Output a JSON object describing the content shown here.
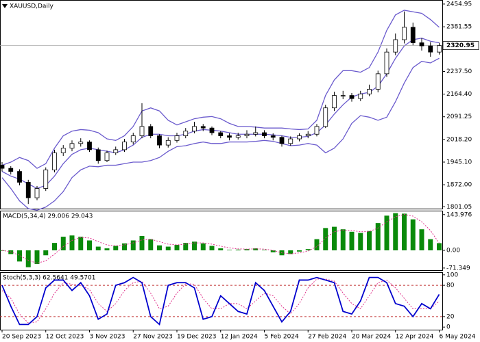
{
  "chart_data": [
    {
      "type": "candlestick",
      "title": "XAUUSD,Daily",
      "open": [
        1935,
        1925,
        1915,
        1880,
        1830,
        1860,
        1920,
        1975,
        1990,
        2005,
        2010,
        1985,
        1950,
        1975,
        1985,
        2010,
        2030,
        2060,
        2030,
        2000,
        2015,
        2030,
        2045,
        2060,
        2055,
        2040,
        2030,
        2025,
        2030,
        2035,
        2040,
        2030,
        2025,
        2005,
        2020,
        2030,
        2035,
        2060,
        2120,
        2160,
        2160,
        2150,
        2165,
        2180,
        2230,
        2300,
        2340,
        2380,
        2330,
        2320,
        2300
      ],
      "high": [
        1945,
        1932,
        1922,
        1888,
        1868,
        1928,
        1985,
        2000,
        2015,
        2022,
        2015,
        1992,
        1982,
        1995,
        2020,
        2040,
        2135,
        2068,
        2035,
        2025,
        2040,
        2055,
        2075,
        2068,
        2060,
        2045,
        2038,
        2040,
        2048,
        2060,
        2048,
        2038,
        2030,
        2028,
        2038,
        2045,
        2068,
        2130,
        2172,
        2175,
        2168,
        2175,
        2195,
        2240,
        2312,
        2360,
        2431,
        2395,
        2345,
        2332,
        2330
      ],
      "low": [
        1915,
        1905,
        1870,
        1810,
        1822,
        1852,
        1912,
        1965,
        1980,
        1995,
        1978,
        1940,
        1945,
        1968,
        1978,
        2002,
        2022,
        2022,
        1990,
        1992,
        2008,
        2022,
        2038,
        2045,
        2032,
        2022,
        2015,
        2018,
        2022,
        2028,
        2022,
        2015,
        1995,
        1998,
        2012,
        2022,
        2028,
        2055,
        2110,
        2148,
        2140,
        2142,
        2158,
        2170,
        2220,
        2290,
        2328,
        2322,
        2305,
        2285,
        2292
      ],
      "close": [
        1925,
        1915,
        1880,
        1830,
        1860,
        1920,
        1975,
        1990,
        2005,
        2010,
        1985,
        1950,
        1975,
        1985,
        2010,
        2030,
        2060,
        2030,
        2000,
        2015,
        2030,
        2045,
        2060,
        2055,
        2040,
        2030,
        2025,
        2030,
        2035,
        2040,
        2030,
        2025,
        2005,
        2020,
        2030,
        2035,
        2060,
        2120,
        2160,
        2160,
        2150,
        2165,
        2180,
        2230,
        2300,
        2340,
        2380,
        2330,
        2320,
        2300,
        2320.95
      ],
      "up_color": "#ffffff",
      "down_color": "#000000",
      "edge_color": "#000000",
      "bands": {
        "color": "#6a5acd",
        "upper": [
          1935,
          1945,
          1960,
          1950,
          1925,
          1940,
          1990,
          2030,
          2045,
          2050,
          2048,
          2040,
          2020,
          2015,
          2030,
          2060,
          2110,
          2120,
          2110,
          2080,
          2065,
          2075,
          2085,
          2090,
          2092,
          2085,
          2070,
          2060,
          2060,
          2058,
          2055,
          2055,
          2055,
          2052,
          2050,
          2052,
          2080,
          2160,
          2210,
          2240,
          2240,
          2235,
          2250,
          2300,
          2370,
          2420,
          2435,
          2430,
          2425,
          2405,
          2380
        ],
        "middle": [
          1915,
          1900,
          1890,
          1875,
          1860,
          1870,
          1900,
          1940,
          1970,
          1985,
          1990,
          1985,
          1980,
          1975,
          1985,
          2000,
          2025,
          2035,
          2035,
          2030,
          2030,
          2035,
          2045,
          2050,
          2048,
          2045,
          2040,
          2035,
          2035,
          2035,
          2035,
          2033,
          2030,
          2025,
          2025,
          2028,
          2040,
          2065,
          2100,
          2130,
          2155,
          2165,
          2170,
          2190,
          2230,
          2280,
          2320,
          2340,
          2345,
          2335,
          2330
        ],
        "lower": [
          1895,
          1860,
          1820,
          1795,
          1790,
          1800,
          1820,
          1850,
          1895,
          1920,
          1932,
          1930,
          1935,
          1935,
          1940,
          1945,
          1945,
          1950,
          1960,
          1980,
          1995,
          1998,
          2005,
          2010,
          2005,
          2005,
          2010,
          2010,
          2010,
          2012,
          2015,
          2012,
          2005,
          1998,
          2000,
          2005,
          2000,
          1975,
          1990,
          2020,
          2070,
          2095,
          2090,
          2080,
          2090,
          2140,
          2200,
          2250,
          2270,
          2265,
          2280
        ]
      },
      "last_price": 2320.95,
      "ylim": [
        1795,
        2468
      ],
      "yticks": [
        2454.95,
        2381.55,
        {
          "value": 2237.5,
          "label": "2237.50"
        },
        {
          "value": 2164.4,
          "label": "2164.40"
        },
        2091.25,
        {
          "value": 2018.2,
          "label": "2018.20"
        },
        {
          "value": 1945.1,
          "label": "1945.10"
        },
        {
          "value": 1872,
          "label": "1872.00"
        },
        1801.05
      ]
    },
    {
      "type": "macd",
      "title": "MACD(5,34,4) 29.006 29.043",
      "values": [
        -2,
        -15,
        -45,
        -68,
        -55,
        -20,
        30,
        55,
        60,
        55,
        40,
        15,
        8,
        18,
        28,
        40,
        58,
        45,
        20,
        15,
        22,
        30,
        35,
        28,
        18,
        8,
        2,
        3,
        5,
        8,
        2,
        -8,
        -20,
        -15,
        -5,
        5,
        45,
        90,
        95,
        85,
        75,
        70,
        78,
        110,
        140,
        150,
        148,
        125,
        85,
        45,
        29.006
      ],
      "signal": [
        0,
        -6,
        -20,
        -40,
        -52,
        -42,
        -15,
        15,
        40,
        52,
        50,
        35,
        22,
        18,
        22,
        30,
        42,
        45,
        35,
        25,
        22,
        25,
        30,
        30,
        25,
        17,
        10,
        6,
        5,
        6,
        5,
        0,
        -10,
        -14,
        -10,
        -3,
        15,
        50,
        75,
        82,
        80,
        75,
        76,
        90,
        115,
        135,
        145,
        138,
        115,
        80,
        29.043
      ],
      "color": "#0a8a0a",
      "signal_color": "#e0308a",
      "ylim": [
        -80,
        160
      ],
      "yticks": [
        143.976,
        {
          "value": 0,
          "label": "0.00"
        },
        -71.349
      ]
    },
    {
      "type": "stochastic",
      "title": "Stoch(5,3,3) 62.5641 49.5701",
      "main": [
        80,
        40,
        5,
        5,
        20,
        75,
        90,
        90,
        70,
        85,
        60,
        15,
        25,
        80,
        85,
        95,
        85,
        20,
        5,
        80,
        85,
        85,
        75,
        15,
        20,
        60,
        45,
        30,
        25,
        85,
        70,
        40,
        10,
        30,
        90,
        90,
        95,
        90,
        85,
        30,
        25,
        50,
        95,
        95,
        85,
        45,
        40,
        20,
        45,
        35,
        62.5641
      ],
      "signal": [
        70,
        55,
        25,
        8,
        10,
        35,
        65,
        85,
        82,
        80,
        72,
        45,
        30,
        45,
        70,
        85,
        88,
        65,
        35,
        40,
        65,
        83,
        82,
        55,
        35,
        35,
        45,
        45,
        35,
        50,
        65,
        60,
        40,
        25,
        45,
        75,
        92,
        92,
        88,
        65,
        45,
        35,
        60,
        85,
        90,
        75,
        55,
        35,
        35,
        35,
        49.5701
      ],
      "color": "#0000cd",
      "signal_color": "#e0308a",
      "level_color": "#c03030",
      "levels": [
        80,
        20
      ],
      "ylim": [
        -5,
        105
      ],
      "yticks": [
        100,
        80,
        20,
        0
      ],
      "categories": [
        "20 Sep 2023",
        null,
        null,
        null,
        null,
        "12 Oct 2023",
        null,
        null,
        null,
        null,
        "3 Nov 2023",
        null,
        null,
        null,
        null,
        "27 Nov 2023",
        null,
        null,
        null,
        null,
        "19 Dec 2023",
        null,
        null,
        null,
        null,
        "12 Jan 2024",
        null,
        null,
        null,
        null,
        "5 Feb 2024",
        null,
        null,
        null,
        null,
        "27 Feb 2024",
        null,
        null,
        null,
        null,
        "20 Mar 2024",
        null,
        null,
        null,
        null,
        "12 Apr 2024",
        null,
        null,
        null,
        null,
        "6 May 2024"
      ]
    }
  ]
}
